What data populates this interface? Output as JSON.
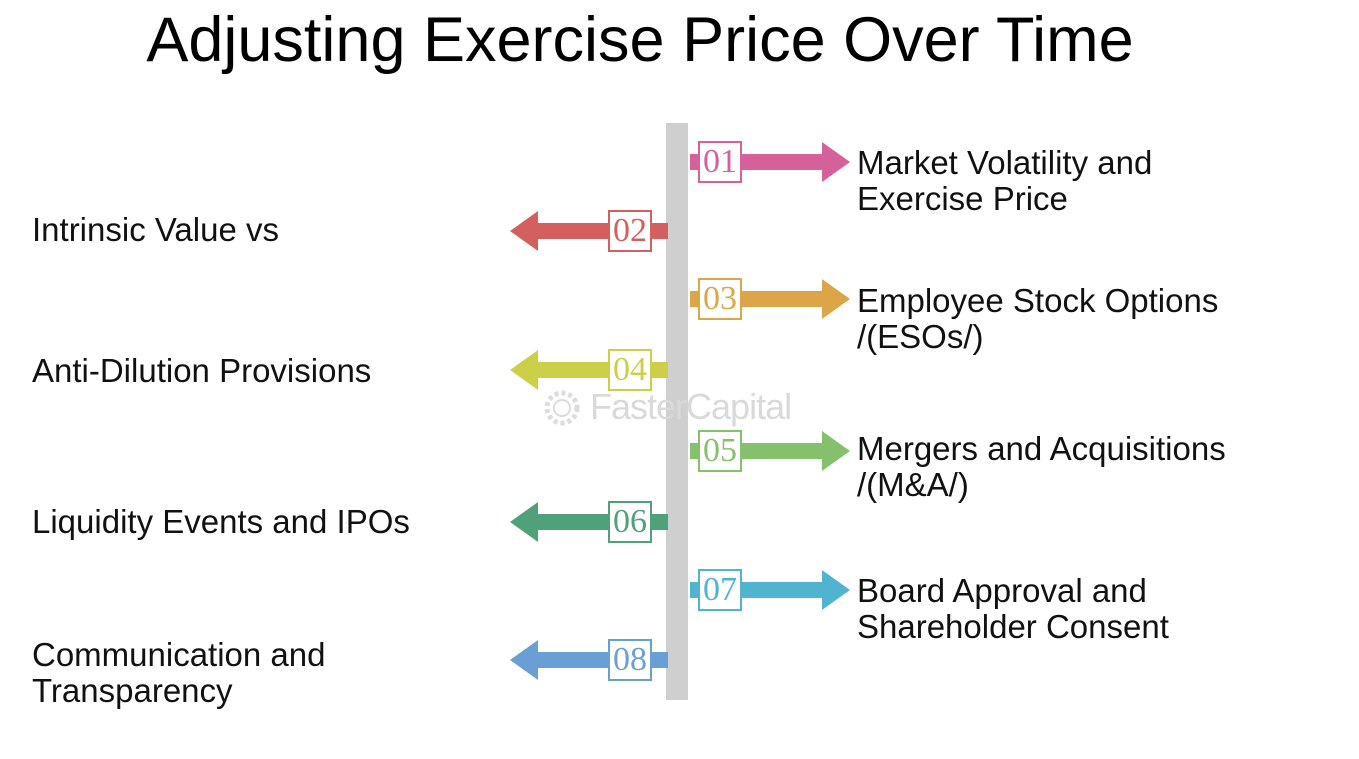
{
  "title": "Adjusting Exercise Price Over Time",
  "watermark": "FasterCapital",
  "items": [
    {
      "num": "01",
      "side": "right",
      "color": "#d6609a",
      "lines": [
        "Market Volatility and",
        "Exercise Price"
      ]
    },
    {
      "num": "02",
      "side": "left",
      "color": "#d35f5f",
      "lines": [
        "Intrinsic Value vs"
      ]
    },
    {
      "num": "03",
      "side": "right",
      "color": "#dca548",
      "lines": [
        "Employee Stock Options",
        "/(ESOs/)"
      ]
    },
    {
      "num": "04",
      "side": "left",
      "color": "#cbd048",
      "lines": [
        "Anti-Dilution Provisions"
      ]
    },
    {
      "num": "05",
      "side": "right",
      "color": "#85c06c",
      "lines": [
        "Mergers and Acquisitions",
        "/(M&A/)"
      ]
    },
    {
      "num": "06",
      "side": "left",
      "color": "#4fa17a",
      "lines": [
        "Liquidity Events and IPOs"
      ]
    },
    {
      "num": "07",
      "side": "right",
      "color": "#50b3cf",
      "lines": [
        "Board Approval and",
        "Shareholder Consent"
      ]
    },
    {
      "num": "08",
      "side": "left",
      "color": "#6a9fd6",
      "lines": [
        "Communication and",
        "Transparency"
      ]
    }
  ]
}
